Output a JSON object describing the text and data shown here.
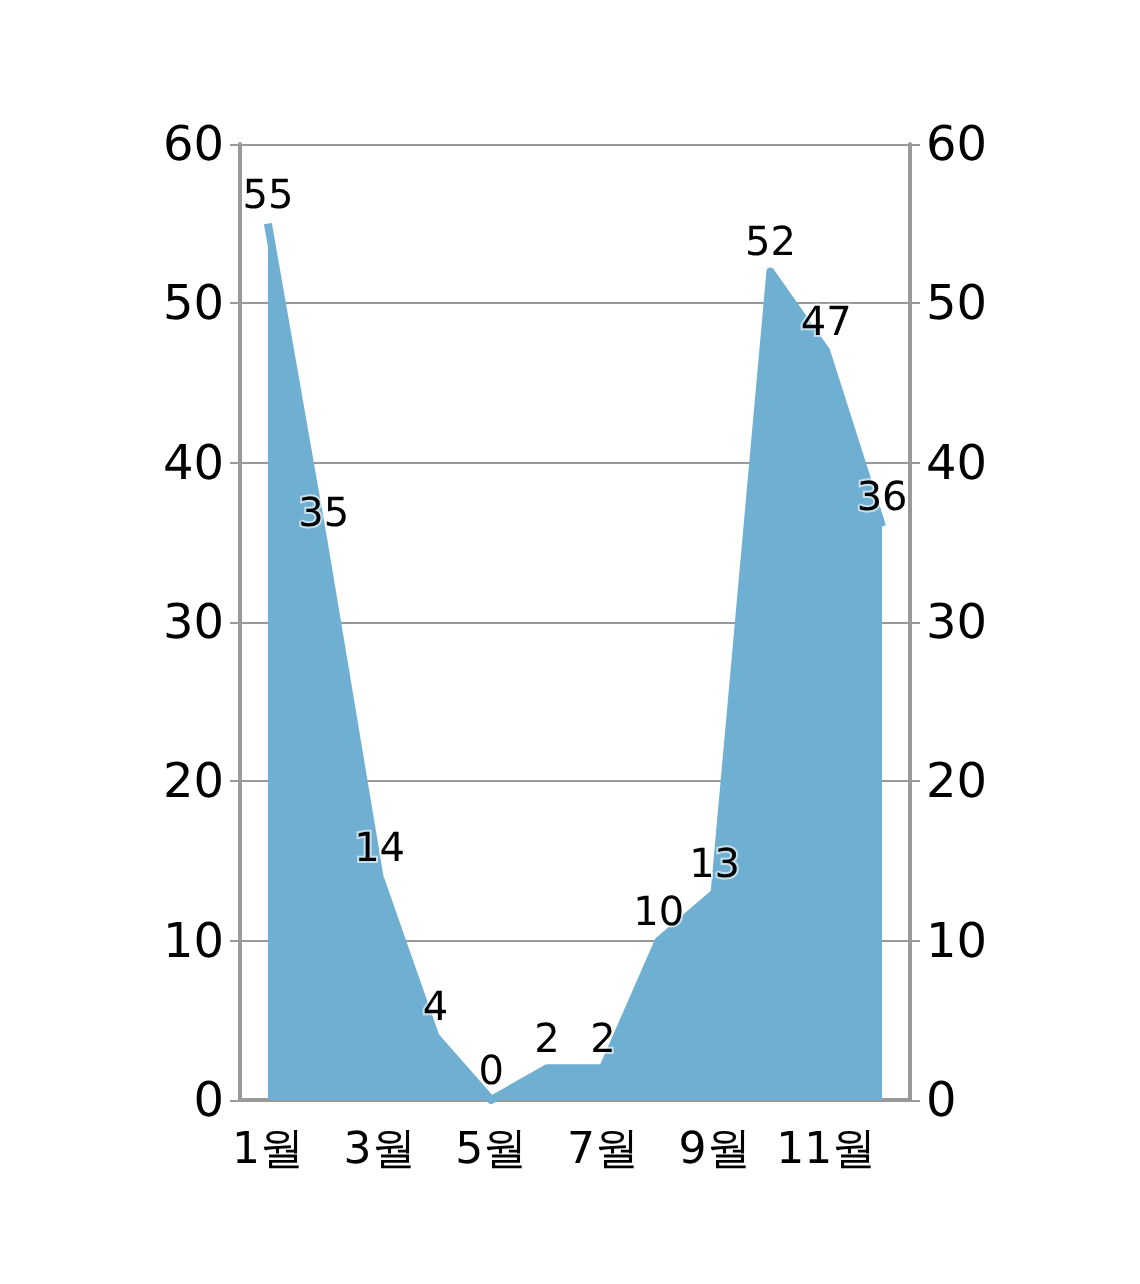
{
  "chart_data": {
    "type": "area",
    "categories": [
      "1월",
      null,
      "3월",
      null,
      "5월",
      null,
      "7월",
      null,
      "9월",
      null,
      "11월",
      null
    ],
    "series": [
      {
        "color": "#6fb0d2",
        "values": [
          55,
          35,
          14,
          4,
          0,
          2,
          2,
          10,
          13,
          52,
          47,
          36
        ]
      }
    ],
    "ylim": [
      0,
      60
    ],
    "yticks": [
      0,
      10,
      20,
      30,
      40,
      50,
      60
    ],
    "y2lim": [
      0,
      60
    ],
    "y2ticks": [
      0,
      10,
      20,
      30,
      40,
      50,
      60
    ],
    "data_labels": true,
    "grid": "y"
  }
}
